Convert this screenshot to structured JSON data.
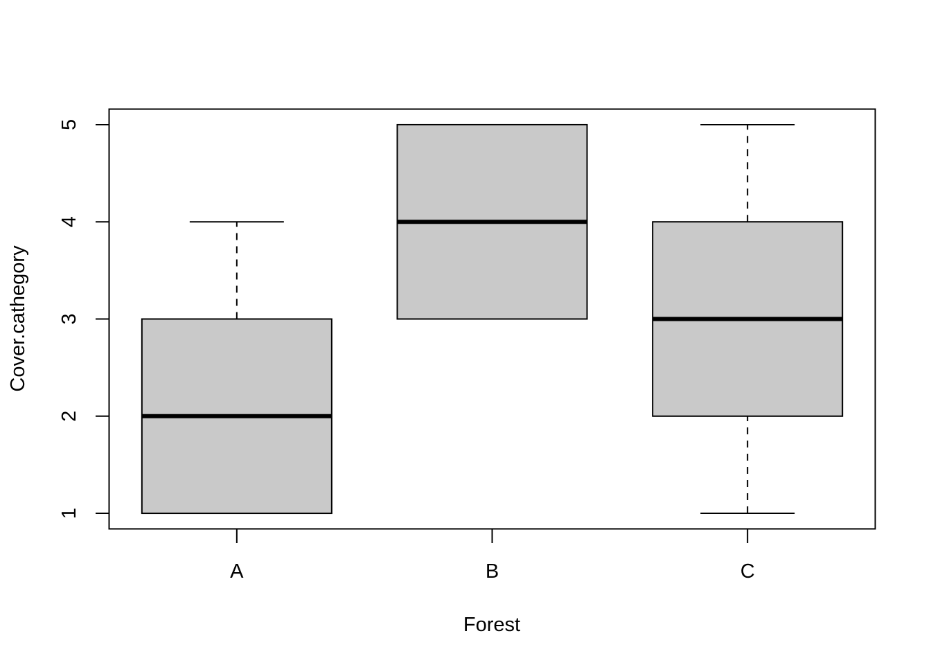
{
  "chart_data": {
    "type": "boxplot",
    "title": "",
    "xlabel": "Forest",
    "ylabel": "Cover.cathegory",
    "categories": [
      "A",
      "B",
      "C"
    ],
    "y_ticks": [
      "1",
      "2",
      "3",
      "4",
      "5"
    ],
    "ylim": [
      0.84,
      5.16
    ],
    "grid": false,
    "box_fill": "#c9c9c9",
    "boxes": [
      {
        "category": "A",
        "min": 1,
        "q1": 1,
        "median": 2,
        "q3": 3,
        "max": 4
      },
      {
        "category": "B",
        "min": 3,
        "q1": 3,
        "median": 4,
        "q3": 5,
        "max": 5
      },
      {
        "category": "C",
        "min": 1,
        "q1": 2,
        "median": 3,
        "q3": 4,
        "max": 5
      }
    ]
  }
}
